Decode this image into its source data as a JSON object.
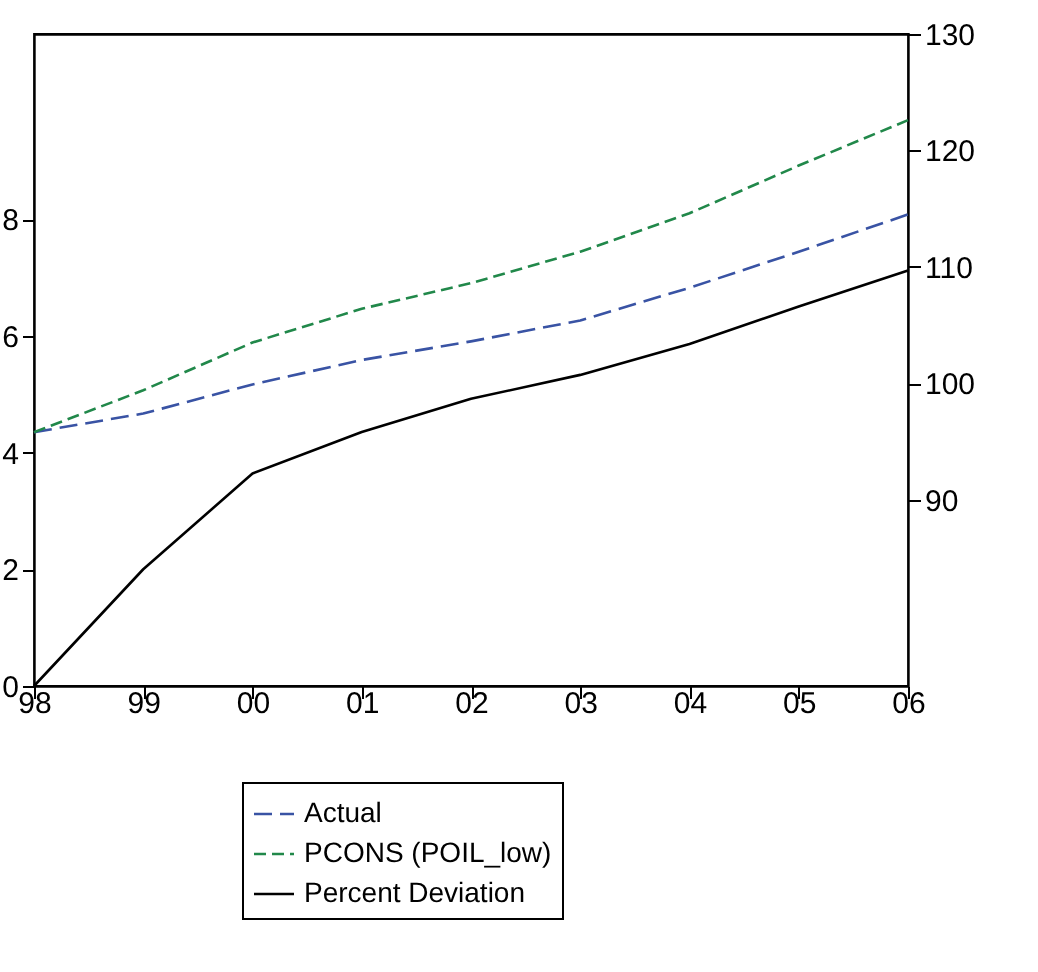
{
  "chart_data": {
    "type": "line",
    "categories": [
      "98",
      "99",
      "00",
      "01",
      "02",
      "03",
      "04",
      "05",
      "06"
    ],
    "series": [
      {
        "name": "Actual",
        "color": "#3953a4",
        "axis": "y2",
        "line_style": "dashed",
        "values": [
          95.8,
          97.4,
          99.9,
          102.0,
          103.6,
          105.4,
          108.2,
          111.3,
          114.5
        ]
      },
      {
        "name": "PCONS (POIL_low)",
        "color": "#21884a",
        "axis": "y2",
        "line_style": "dashed",
        "values": [
          95.8,
          99.4,
          103.5,
          106.4,
          108.6,
          111.3,
          114.6,
          118.7,
          122.6
        ]
      },
      {
        "name": "Percent Deviation",
        "color": "#000000",
        "axis": "y",
        "line_style": "solid",
        "values": [
          0,
          2.0,
          3.64,
          4.35,
          4.92,
          5.33,
          5.86,
          6.5,
          7.12
        ]
      }
    ],
    "ylim": [
      0,
      11.17
    ],
    "yticks": [
      0,
      2,
      4,
      6,
      8
    ],
    "y2lim": [
      74,
      130
    ],
    "y2ticks": [
      90,
      100,
      110,
      120,
      130
    ],
    "grid": false,
    "legend": "bottom",
    "marker": "none"
  }
}
